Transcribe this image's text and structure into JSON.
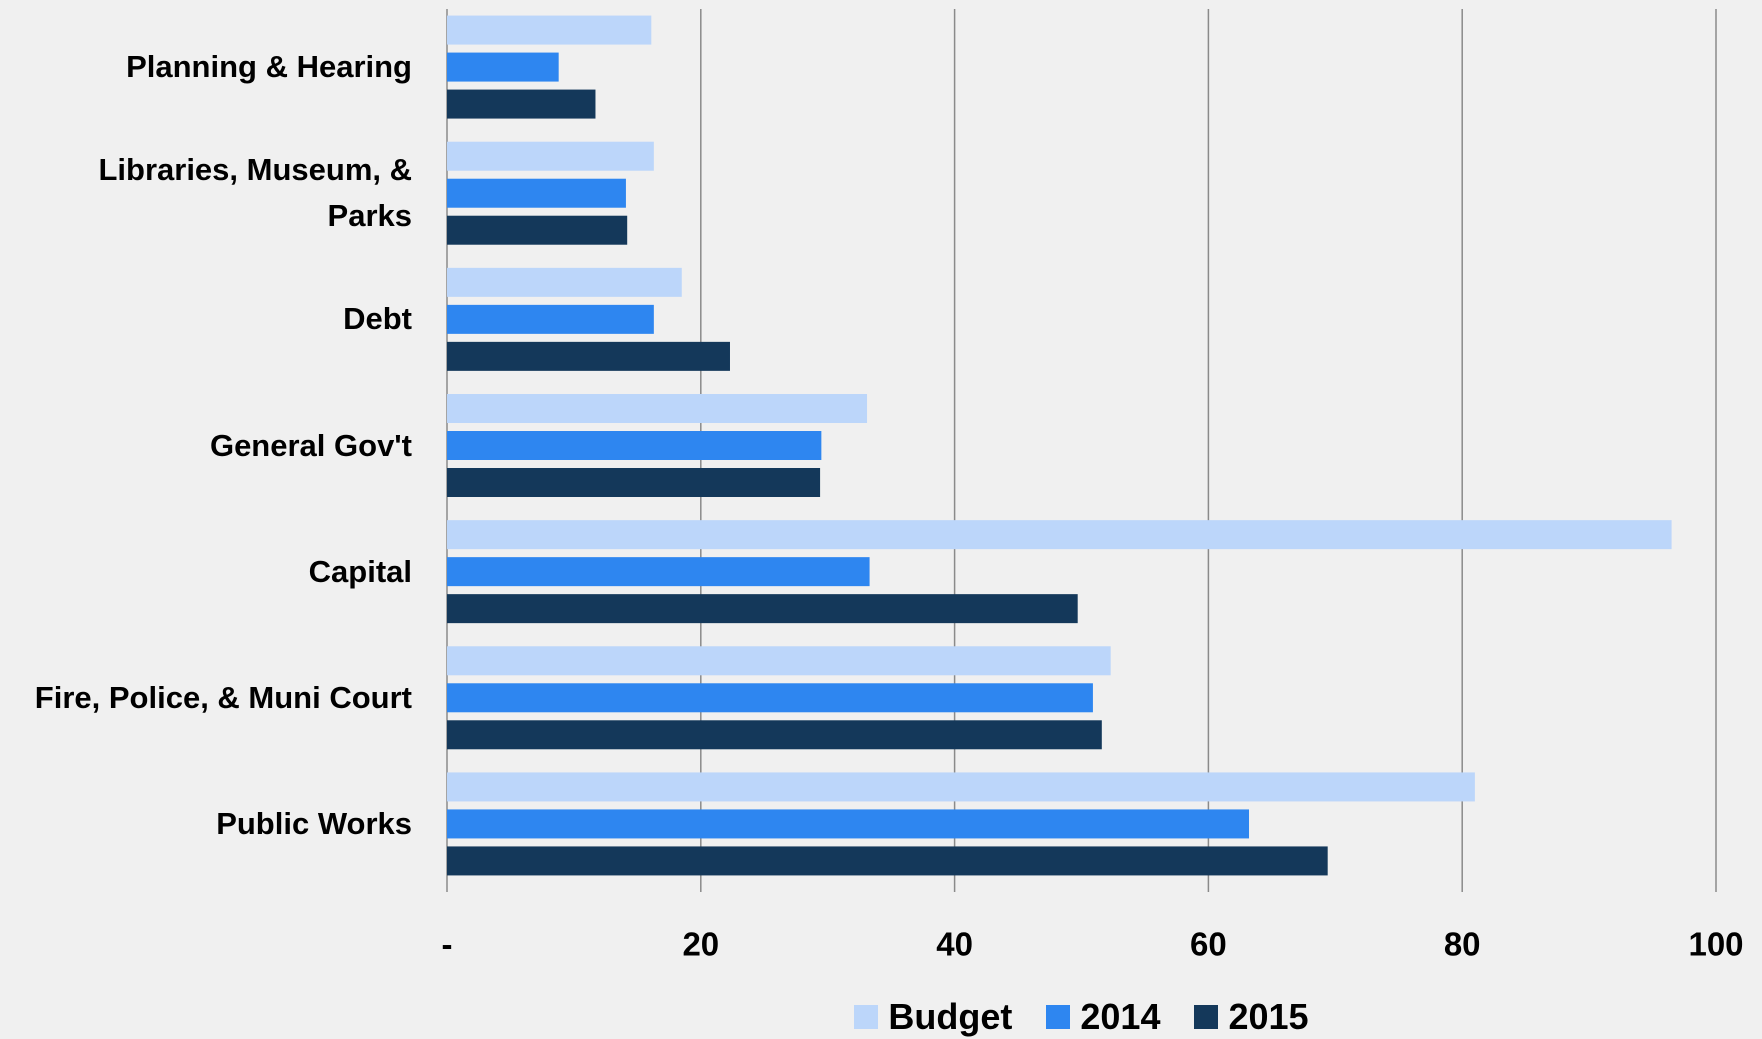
{
  "chart_data": {
    "type": "bar",
    "orientation": "horizontal",
    "categories": [
      "Planning & Hearing",
      "Libraries, Museum, & Parks",
      "Debt",
      "General Gov't",
      "Capital",
      "Fire, Police, & Muni Court",
      "Public Works"
    ],
    "series": [
      {
        "name": "Budget",
        "color": "#bcd6fa",
        "values": [
          16.1,
          16.3,
          18.5,
          33.1,
          96.5,
          52.3,
          81.0
        ]
      },
      {
        "name": "2014",
        "color": "#2e86f0",
        "values": [
          8.8,
          14.1,
          16.3,
          29.5,
          33.3,
          50.9,
          63.2
        ]
      },
      {
        "name": "2015",
        "color": "#14385a",
        "values": [
          11.7,
          14.2,
          22.3,
          29.4,
          49.7,
          51.6,
          69.4
        ]
      }
    ],
    "xlim": [
      0,
      100
    ],
    "xticks": [
      {
        "value": 0,
        "label": "-"
      },
      20,
      40,
      60,
      80,
      100
    ],
    "grid": true,
    "legend": "bottom"
  }
}
